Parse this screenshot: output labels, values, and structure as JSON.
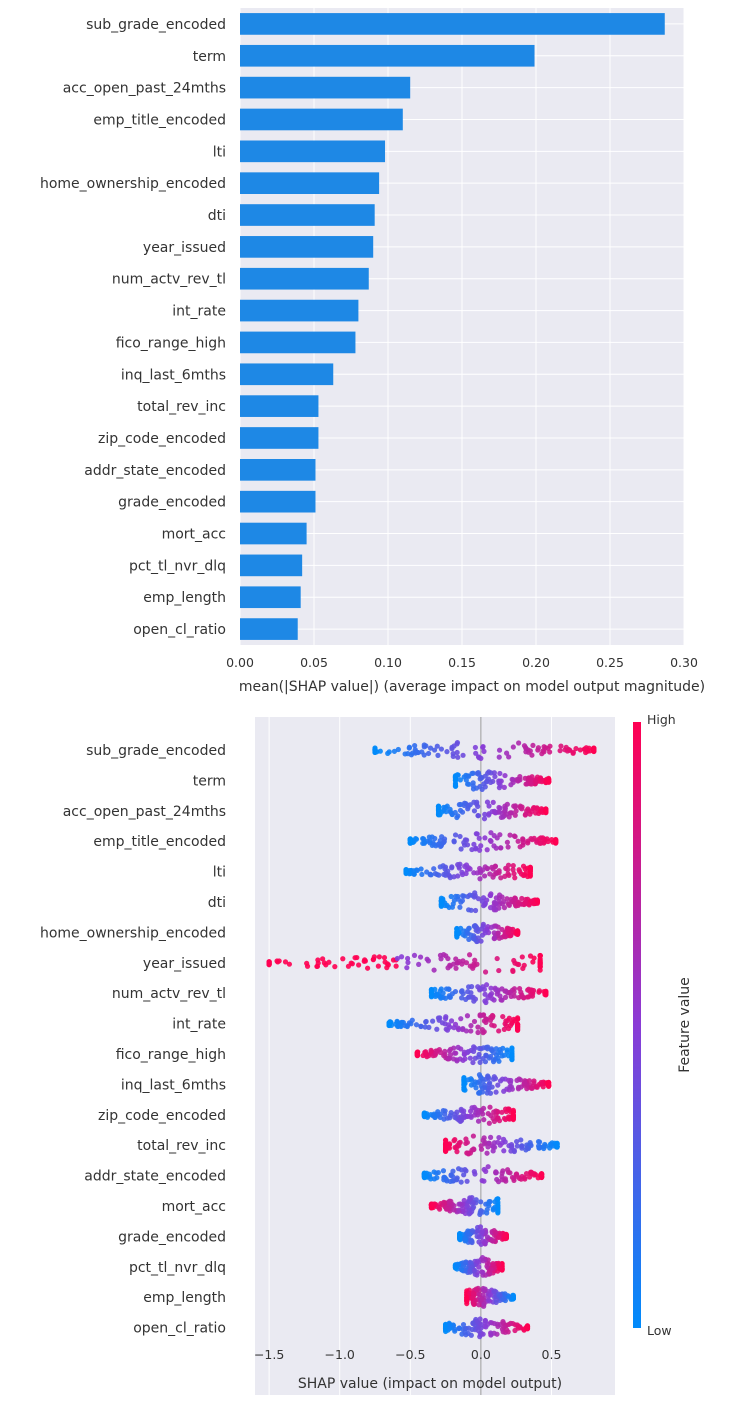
{
  "chart_data": [
    {
      "type": "bar",
      "orientation": "horizontal",
      "title": "",
      "xlabel": "mean(|SHAP value|) (average impact on model output magnitude)",
      "ylabel": "",
      "xlim": [
        0,
        0.3
      ],
      "xticks": [
        "0.00",
        "0.05",
        "0.10",
        "0.15",
        "0.20",
        "0.25",
        "0.30"
      ],
      "grid": true,
      "colors": {
        "bar": "#1e88e5",
        "background": "#eaeaf2",
        "grid": "#ffffff"
      },
      "categories": [
        "sub_grade_encoded",
        "term",
        "acc_open_past_24mths",
        "emp_title_encoded",
        "lti",
        "home_ownership_encoded",
        "dti",
        "year_issued",
        "num_actv_rev_tl",
        "int_rate",
        "fico_range_high",
        "inq_last_6mths",
        "total_rev_inc",
        "zip_code_encoded",
        "addr_state_encoded",
        "grade_encoded",
        "mort_acc",
        "pct_tl_nvr_dlq",
        "emp_length",
        "open_cl_ratio"
      ],
      "values": [
        0.287,
        0.199,
        0.115,
        0.11,
        0.098,
        0.094,
        0.091,
        0.09,
        0.087,
        0.08,
        0.078,
        0.063,
        0.053,
        0.053,
        0.051,
        0.051,
        0.045,
        0.042,
        0.041,
        0.039
      ]
    },
    {
      "type": "scatter",
      "subtype": "beeswarm",
      "title": "",
      "xlabel": "SHAP value (impact on model output)",
      "ylabel": "",
      "xlim": [
        -1.6,
        0.95
      ],
      "xticks": [
        "−1.5",
        "−1.0",
        "−0.5",
        "0.0",
        "0.5"
      ],
      "grid": true,
      "colorbar": {
        "label": "Feature value",
        "high": "High",
        "low": "Low",
        "colors": [
          "#ff0052",
          "#8a3bd6",
          "#008bfb"
        ]
      },
      "categories": [
        "sub_grade_encoded",
        "term",
        "acc_open_past_24mths",
        "emp_title_encoded",
        "lti",
        "dti",
        "home_ownership_encoded",
        "year_issued",
        "num_actv_rev_tl",
        "int_rate",
        "fico_range_high",
        "inq_last_6mths",
        "zip_code_encoded",
        "total_rev_inc",
        "addr_state_encoded",
        "mort_acc",
        "grade_encoded",
        "pct_tl_nvr_dlq",
        "emp_length",
        "open_cl_ratio"
      ],
      "range_low": [
        -0.75,
        -0.18,
        -0.3,
        -0.5,
        -0.53,
        -0.28,
        -0.17,
        -1.5,
        -0.35,
        -0.65,
        -0.45,
        -0.12,
        -0.4,
        -0.25,
        -0.4,
        -0.35,
        -0.15,
        -0.18,
        -0.1,
        -0.25
      ],
      "range_high": [
        0.8,
        0.48,
        0.46,
        0.53,
        0.35,
        0.4,
        0.26,
        0.42,
        0.46,
        0.26,
        0.22,
        0.48,
        0.23,
        0.54,
        0.43,
        0.12,
        0.18,
        0.15,
        0.23,
        0.33
      ]
    }
  ]
}
